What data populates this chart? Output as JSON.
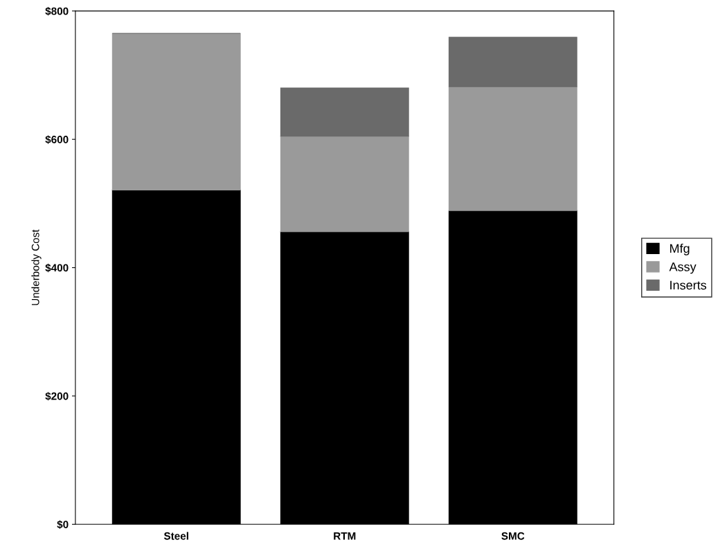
{
  "chart_data": {
    "type": "bar",
    "stacked": true,
    "ylabel": "Underbody Cost",
    "categories": [
      "Steel",
      "RTM",
      "SMC"
    ],
    "series": [
      {
        "name": "Mfg",
        "color": "#000000",
        "values": [
          521,
          456,
          489
        ]
      },
      {
        "name": "Assy",
        "color": "#9a9a9a",
        "values": [
          244,
          149,
          193
        ]
      },
      {
        "name": "Inserts",
        "color": "#6a6a6a",
        "values": [
          0,
          75,
          77
        ]
      }
    ],
    "ylim": [
      0,
      800
    ],
    "yticks": [
      {
        "value": 0,
        "label": "$0"
      },
      {
        "value": 200,
        "label": "$200"
      },
      {
        "value": 400,
        "label": "$400"
      },
      {
        "value": 600,
        "label": "$600"
      },
      {
        "value": 800,
        "label": "$800"
      }
    ],
    "grid": false,
    "legend": "right"
  }
}
